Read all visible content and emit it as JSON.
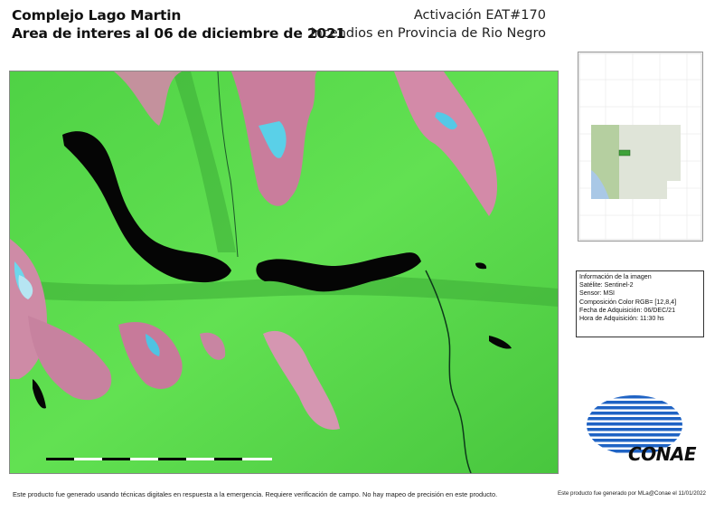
{
  "header": {
    "title_line1": "Complejo Lago Martin",
    "title_line2": "Area de interes al 06 de diciembre de 2021",
    "activation": "Activación EAT#170",
    "subtitle": "Incendios en Provincia de Rio Negro"
  },
  "image_info": {
    "heading": "Información de la imagen",
    "satellite": "Satélite: Sentinel-2",
    "sensor": "Sensor: MSI",
    "composition": "Composición Color  RGB= [12,8,4]",
    "acq_date": "Fecha de Adquisición: 06/DEC/21",
    "acq_time": "Hora de Adquisición:  11:30 hs"
  },
  "logo": {
    "text": "CONAE",
    "color": "#1f63c4"
  },
  "footer": {
    "disclaimer": "Este producto fue generado usando técnicas digitales en respuesta a la emergencia. Requiere verificación de campo. No hay mapeo de precisión en este producto.",
    "credit": "Este producto fue generado por MLa@Conae el 11/01/2022"
  },
  "colors": {
    "vegetation": "#55d84a",
    "water": "#050505",
    "snow": "#46c7e2",
    "burned_rock": "#d08aa6"
  },
  "icons": [
    "map-image",
    "locator-map",
    "scale-bar",
    "conae-logo"
  ]
}
